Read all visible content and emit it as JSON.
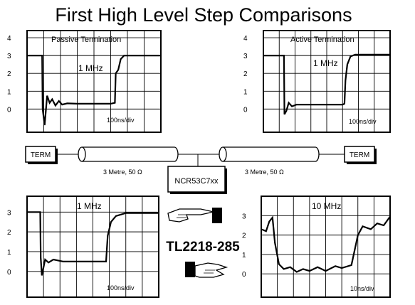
{
  "title": "First High Level Step Comparisons",
  "scopes": {
    "top_left": {
      "label": "Passive Termination",
      "freq": "1 MHz",
      "timebase": "100ns/div",
      "y_ticks": [
        "4",
        "3",
        "2",
        "1",
        "0"
      ],
      "trace": [
        [
          0,
          3
        ],
        [
          0.9,
          3
        ],
        [
          0.93,
          0
        ],
        [
          1.05,
          -0.9
        ],
        [
          1.2,
          0.75
        ],
        [
          1.35,
          0.35
        ],
        [
          1.5,
          0.55
        ],
        [
          1.7,
          0.2
        ],
        [
          1.9,
          0.45
        ],
        [
          2.1,
          0.25
        ],
        [
          2.4,
          0.32
        ],
        [
          3.0,
          0.3
        ],
        [
          5.0,
          0.3
        ],
        [
          5.25,
          0.35
        ],
        [
          5.3,
          2.0
        ],
        [
          5.45,
          2.2
        ],
        [
          5.6,
          2.8
        ],
        [
          5.8,
          3.0
        ],
        [
          8,
          3.0
        ]
      ]
    },
    "top_right": {
      "label": "Active Termination",
      "freq": "1 MHz",
      "timebase": "100ns/div",
      "y_ticks": [
        "4",
        "3",
        "2",
        "1",
        "0"
      ],
      "trace": [
        [
          0,
          3
        ],
        [
          1.3,
          3
        ],
        [
          1.33,
          -0.3
        ],
        [
          1.45,
          -0.1
        ],
        [
          1.6,
          0.35
        ],
        [
          1.8,
          0.15
        ],
        [
          2.1,
          0.25
        ],
        [
          5.0,
          0.25
        ],
        [
          5.12,
          0.3
        ],
        [
          5.18,
          1.6
        ],
        [
          5.3,
          2.5
        ],
        [
          5.5,
          2.95
        ],
        [
          5.8,
          3.05
        ],
        [
          8,
          3.05
        ]
      ]
    },
    "bottom_left": {
      "label": "",
      "freq": "1 MHz",
      "timebase": "100ns/div",
      "y_ticks": [
        "3",
        "2",
        "1",
        "0"
      ],
      "trace": [
        [
          0,
          3
        ],
        [
          0.8,
          3
        ],
        [
          0.83,
          0.7
        ],
        [
          0.9,
          -0.2
        ],
        [
          1.1,
          0.6
        ],
        [
          1.3,
          0.45
        ],
        [
          1.6,
          0.6
        ],
        [
          2.2,
          0.5
        ],
        [
          4.8,
          0.5
        ],
        [
          4.9,
          1.8
        ],
        [
          5.1,
          2.5
        ],
        [
          5.4,
          2.8
        ],
        [
          6.0,
          2.95
        ],
        [
          8,
          2.95
        ]
      ]
    },
    "bottom_right": {
      "label": "",
      "freq": "10 MHz",
      "timebase": "10ns/div",
      "y_ticks": [
        "3",
        "2",
        "1",
        "0"
      ],
      "trace": [
        [
          0,
          2.3
        ],
        [
          0.3,
          2.2
        ],
        [
          0.5,
          2.7
        ],
        [
          0.7,
          2.9
        ],
        [
          0.85,
          1.6
        ],
        [
          1.1,
          0.5
        ],
        [
          1.4,
          0.25
        ],
        [
          1.8,
          0.35
        ],
        [
          2.2,
          0.1
        ],
        [
          2.6,
          0.25
        ],
        [
          3.0,
          0.15
        ],
        [
          3.5,
          0.35
        ],
        [
          4.0,
          0.15
        ],
        [
          4.6,
          0.4
        ],
        [
          5.0,
          0.3
        ],
        [
          5.6,
          0.45
        ],
        [
          6.0,
          2.0
        ],
        [
          6.3,
          2.45
        ],
        [
          6.8,
          2.3
        ],
        [
          7.2,
          2.6
        ],
        [
          7.6,
          2.5
        ],
        [
          8,
          2.95
        ]
      ]
    }
  },
  "cable": {
    "term_left": "TERM",
    "term_right": "TERM",
    "length_left": "3 Metre, 50 Ω",
    "length_right": "3 Metre, 50 Ω",
    "chip": "NCR53C7xx"
  },
  "part_number": "TL2218-285"
}
